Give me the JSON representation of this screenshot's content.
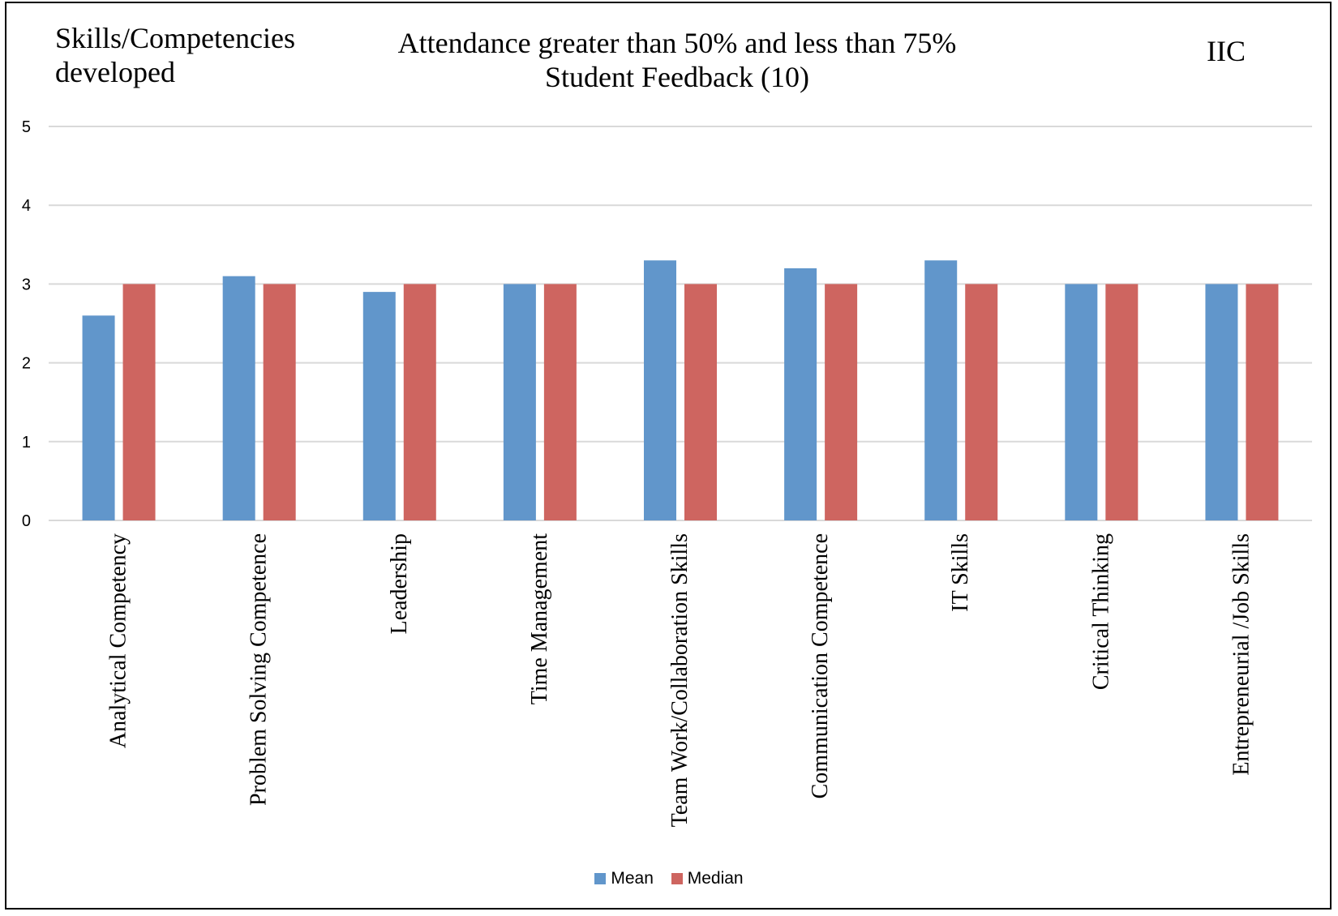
{
  "header": {
    "left_title": "Skills/Competencies developed",
    "title_line1": "Attendance greater than 50% and less than 75%",
    "title_line2": "Student Feedback (10)",
    "right_title": "IIC"
  },
  "colors": {
    "mean": "#6196CB",
    "median": "#CE6560",
    "grid": "#D9D9D9",
    "border": "#000000"
  },
  "chart_data": {
    "type": "bar",
    "title": "Attendance greater than 50% and less than 75% Student Feedback (10)",
    "categories": [
      "Analytical Competency",
      "Problem Solving Competence",
      "Leadership",
      "Time Management",
      "Team Work/Collaboration Skills",
      "Communication Competence",
      "IT Skills",
      "Critical Thinking",
      "Entrepreneurial /Job Skills"
    ],
    "series": [
      {
        "name": "Mean",
        "values": [
          2.6,
          3.1,
          2.9,
          3.0,
          3.3,
          3.2,
          3.3,
          3.0,
          3.0
        ]
      },
      {
        "name": "Median",
        "values": [
          3,
          3,
          3,
          3,
          3,
          3,
          3,
          3,
          3
        ]
      }
    ],
    "yticks": [
      "0",
      "1",
      "2",
      "3",
      "4",
      "5"
    ],
    "ylim": [
      0,
      5
    ],
    "xlabel": "",
    "ylabel": "",
    "grid": true,
    "legend_position": "bottom"
  }
}
